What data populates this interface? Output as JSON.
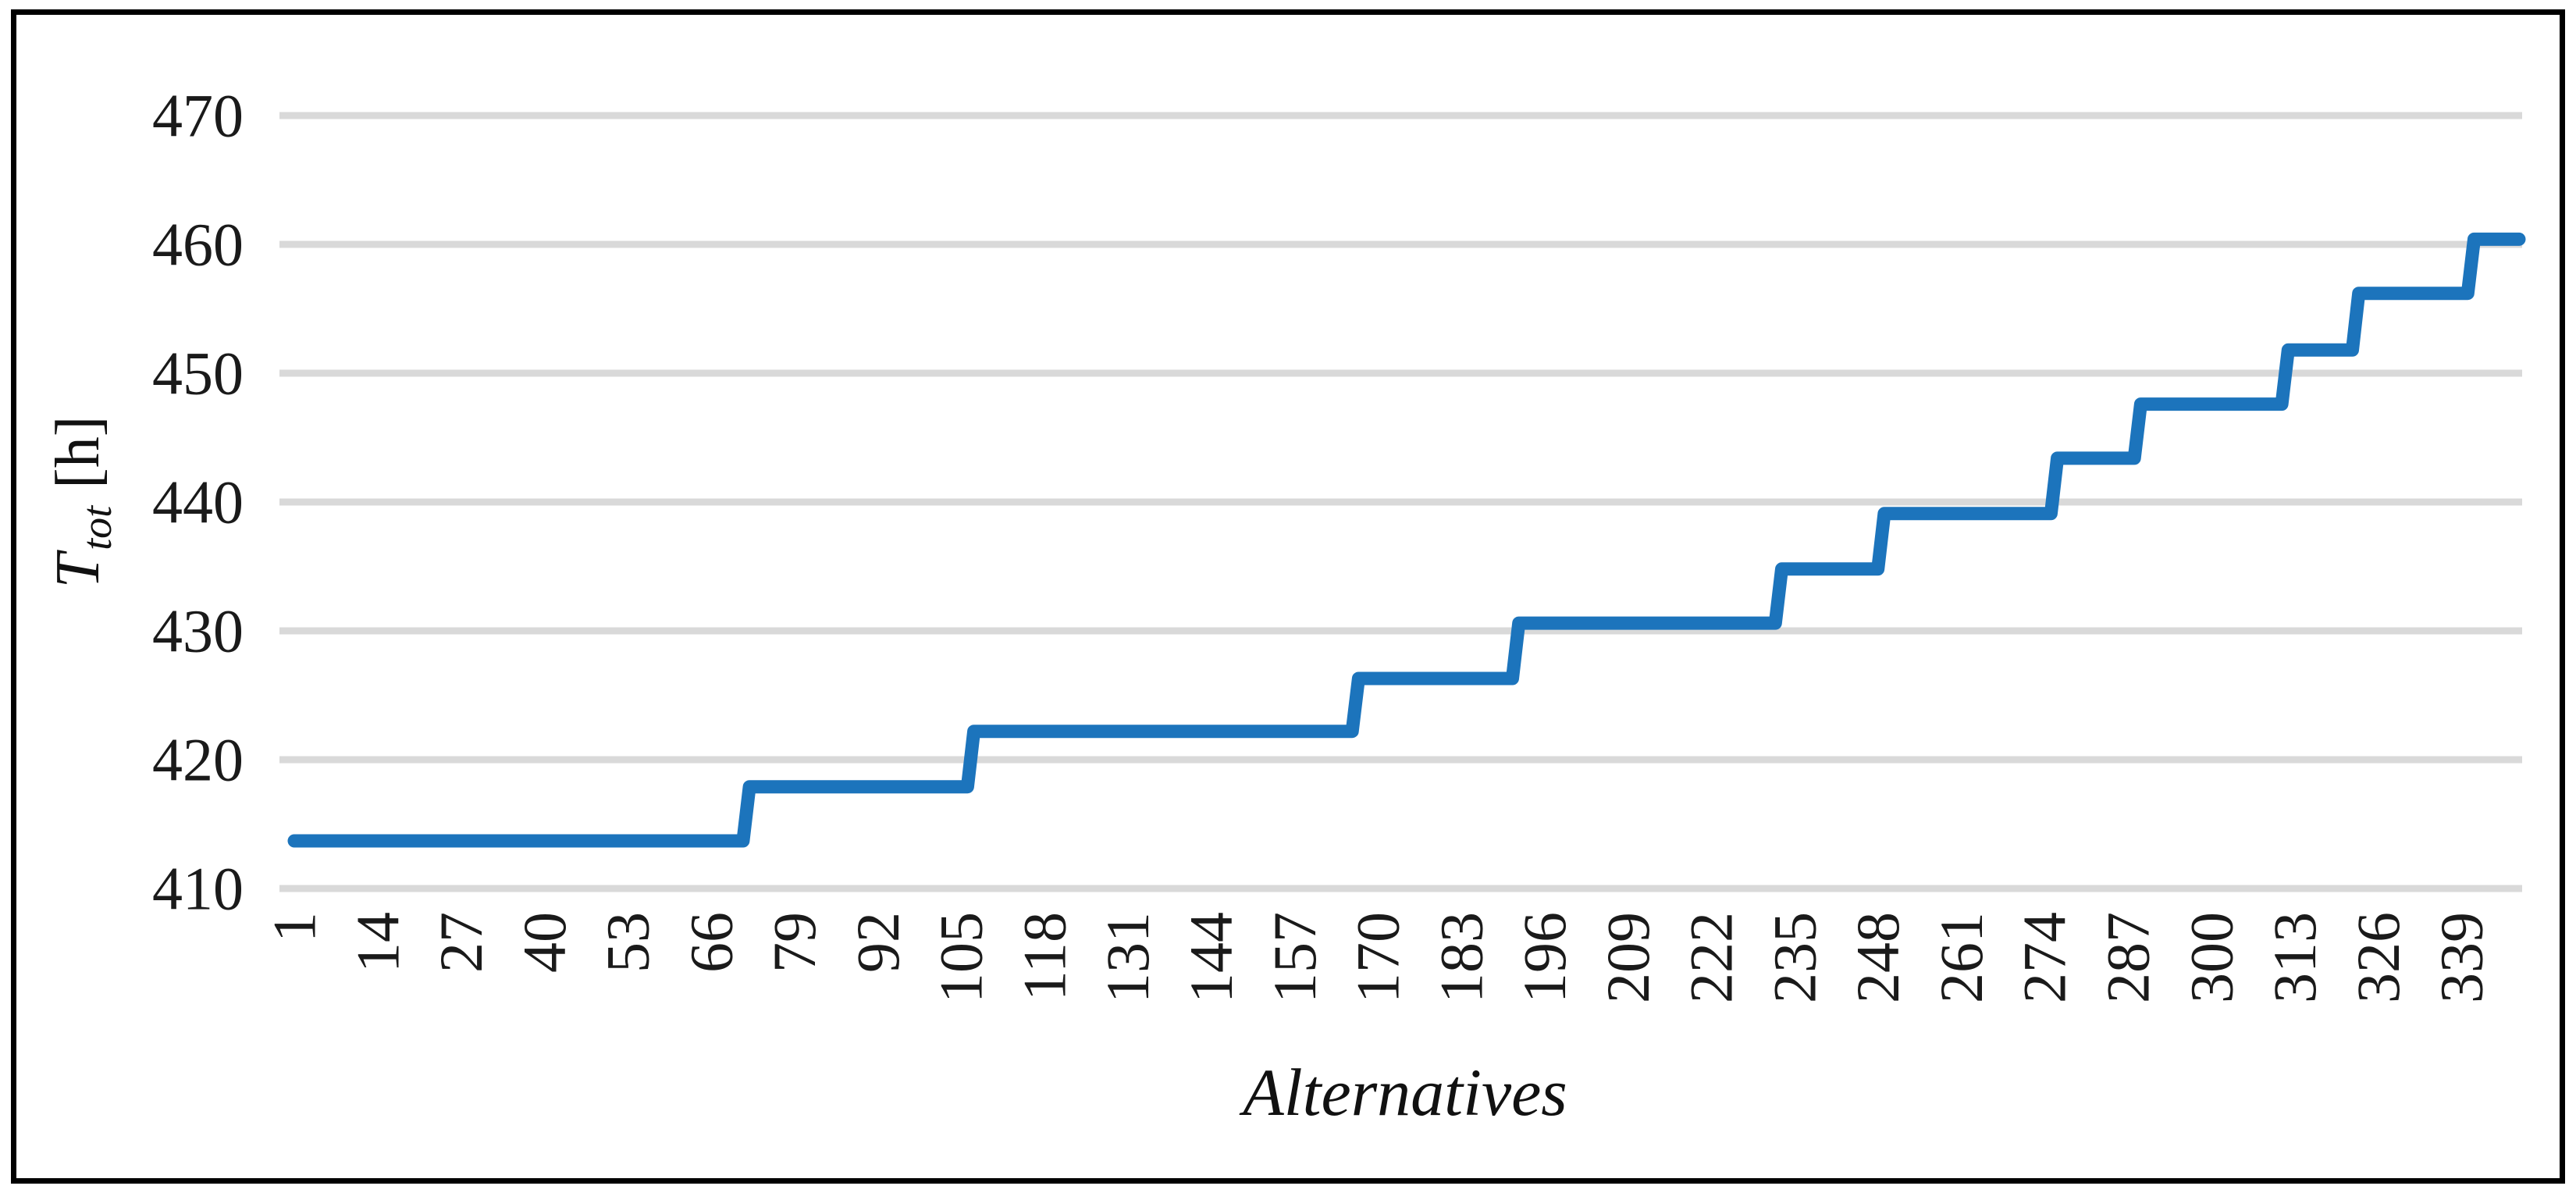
{
  "chart_data": {
    "type": "line",
    "subtype": "step",
    "title": "",
    "xlabel": "Alternatives",
    "ylabel": "T_tot [h]",
    "y_title": {
      "symbol": "T",
      "subscript": "tot",
      "unit": "[h]"
    },
    "ylim": [
      410,
      470
    ],
    "y_ticks": [
      410,
      420,
      430,
      440,
      450,
      460,
      470
    ],
    "x_tick_labels": [
      "1",
      "14",
      "27",
      "40",
      "53",
      "66",
      "79",
      "92",
      "105",
      "118",
      "131",
      "144",
      "157",
      "170",
      "183",
      "196",
      "209",
      "222",
      "235",
      "248",
      "261",
      "274",
      "287",
      "300",
      "313",
      "326",
      "339"
    ],
    "x_tick_start": 1,
    "x_tick_step": 13,
    "n_alternatives": 348,
    "grid": "horizontal",
    "legend": "none",
    "gridline_color": "#d9d9d9",
    "frame_color": "#000000",
    "background_color": "#ffffff",
    "series": [
      {
        "name": "T_tot [h]",
        "color": "#1c74bc",
        "steps": [
          {
            "value": 413.7,
            "from": 1,
            "to": 71
          },
          {
            "value": 417.9,
            "from": 72,
            "to": 106
          },
          {
            "value": 422.2,
            "from": 107,
            "to": 166
          },
          {
            "value": 426.3,
            "from": 167,
            "to": 191
          },
          {
            "value": 430.6,
            "from": 192,
            "to": 232
          },
          {
            "value": 434.8,
            "from": 233,
            "to": 248
          },
          {
            "value": 439.1,
            "from": 249,
            "to": 275
          },
          {
            "value": 443.4,
            "from": 276,
            "to": 288
          },
          {
            "value": 447.6,
            "from": 289,
            "to": 311
          },
          {
            "value": 451.8,
            "from": 312,
            "to": 322
          },
          {
            "value": 456.2,
            "from": 323,
            "to": 340
          },
          {
            "value": 460.4,
            "from": 341,
            "to": 348
          }
        ]
      }
    ]
  }
}
